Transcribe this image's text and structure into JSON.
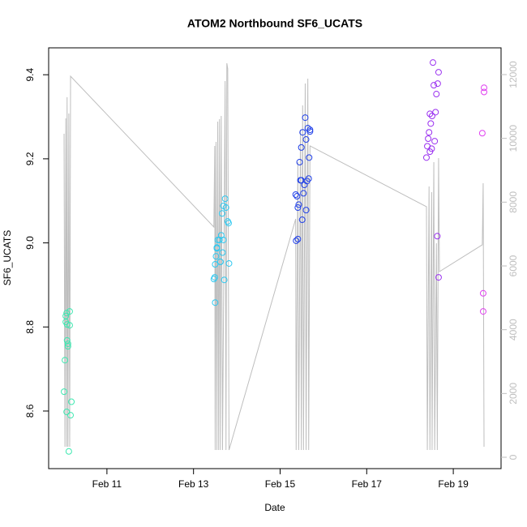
{
  "chart_data": {
    "type": "scatter",
    "title": "ATOM2 Northbound SF6_UCATS",
    "x_label": "Date",
    "y_label": "SF6_UCATS",
    "xlim": [
      9.654,
      20.103
    ],
    "xticks": [
      {
        "value": 11,
        "label": "Feb 11"
      },
      {
        "value": 13,
        "label": "Feb 13"
      },
      {
        "value": 15,
        "label": "Feb 15"
      },
      {
        "value": 17,
        "label": "Feb 17"
      },
      {
        "value": 19,
        "label": "Feb 19"
      }
    ],
    "ylim": [
      8.463,
      9.464
    ],
    "yticks": [
      8.6,
      8.8,
      {
        "value": 9,
        "label": "9.0"
      },
      9.2,
      9.4
    ],
    "y2lim": [
      -356,
      12839
    ],
    "y2ticks": [
      0,
      2000,
      4000,
      6000,
      8000,
      10000,
      12000
    ],
    "y2_color": "#bebebe",
    "series": [
      {
        "color": "#3ee8b0",
        "x": [
          10.01,
          10.03,
          10.05,
          10.05,
          10.07,
          10.07,
          10.08,
          10.08,
          10.1,
          10.1,
          10.12,
          10.14,
          10.14,
          10.16,
          10.18
        ],
        "values": [
          8.646,
          8.721,
          8.826,
          8.812,
          8.833,
          8.598,
          8.806,
          8.768,
          8.76,
          8.754,
          8.504,
          8.837,
          8.804,
          8.59,
          8.622
        ]
      },
      {
        "color": "#2ec8f0",
        "x": [
          13.47,
          13.49,
          13.5,
          13.5,
          13.52,
          13.54,
          13.54,
          13.56,
          13.6,
          13.62,
          13.62,
          13.64,
          13.66,
          13.67,
          13.69,
          13.69,
          13.71,
          13.73,
          13.75,
          13.79,
          13.81,
          13.82
        ],
        "values": [
          8.914,
          8.918,
          8.949,
          8.858,
          8.968,
          8.987,
          8.989,
          9.007,
          9.007,
          8.955,
          8.955,
          9.018,
          9.07,
          8.977,
          9.088,
          9.007,
          8.912,
          9.105,
          9.084,
          9.051,
          9.047,
          8.951
        ]
      },
      {
        "color": "#2040e8",
        "x": [
          15.36,
          15.37,
          15.39,
          15.41,
          15.41,
          15.43,
          15.45,
          15.47,
          15.49,
          15.49,
          15.51,
          15.52,
          15.54,
          15.56,
          15.58,
          15.6,
          15.6,
          15.62,
          15.64,
          15.66,
          15.67,
          15.69,
          15.69
        ],
        "values": [
          9.115,
          9.005,
          9.111,
          9.009,
          9.084,
          9.091,
          9.192,
          9.149,
          9.227,
          9.149,
          9.055,
          9.263,
          9.118,
          9.138,
          9.298,
          9.078,
          9.246,
          9.147,
          9.273,
          9.153,
          9.203,
          9.265,
          9.269
        ]
      },
      {
        "color": "#9a30f0",
        "x": [
          18.38,
          18.4,
          18.42,
          18.44,
          18.46,
          18.46,
          18.48,
          18.5,
          18.51,
          18.53,
          18.55,
          18.57,
          18.59,
          18.61,
          18.63,
          18.64,
          18.66,
          18.66
        ],
        "values": [
          9.203,
          9.23,
          9.248,
          9.263,
          9.217,
          9.307,
          9.284,
          9.224,
          9.302,
          9.429,
          9.375,
          9.242,
          9.311,
          9.354,
          9.016,
          9.379,
          8.918,
          9.406
        ]
      },
      {
        "color": "#e040f0",
        "x": [
          19.67,
          19.69,
          19.69,
          19.71,
          19.71
        ],
        "values": [
          9.261,
          8.88,
          8.837,
          9.369,
          9.359
        ]
      },
      {
        "type": "line",
        "axis": "y2",
        "color": "#bebebe",
        "x": [
          10.01,
          10.03,
          10.05,
          10.07,
          10.08,
          10.1,
          10.12,
          10.14,
          10.16,
          13.47,
          13.49,
          13.5,
          13.52,
          13.54,
          13.56,
          13.58,
          13.6,
          13.62,
          13.64,
          13.67,
          13.73,
          13.75,
          13.77,
          13.79,
          13.82,
          15.36,
          15.37,
          15.41,
          15.43,
          15.47,
          15.49,
          15.52,
          15.54,
          15.58,
          15.6,
          15.64,
          15.66,
          15.69,
          18.38,
          18.4,
          18.44,
          18.46,
          18.5,
          18.51,
          18.55,
          18.57,
          18.61,
          18.63,
          18.66,
          18.68,
          19.67,
          19.69,
          19.71
        ],
        "values": [
          10145,
          330,
          10628,
          330,
          11290,
          330,
          10780,
          330,
          11950,
          7221,
          9763,
          229,
          9891,
          229,
          10526,
          229,
          10603,
          229,
          10705,
          229,
          11798,
          229,
          12357,
          12180,
          229,
          7475,
          229,
          9255,
          229,
          10272,
          229,
          11035,
          229,
          11722,
          229,
          11874,
          229,
          9763,
          7857,
          229,
          8492,
          229,
          8314,
          229,
          9255,
          229,
          6713,
          229,
          9382,
          5822,
          6662,
          8594,
          330
        ]
      }
    ]
  }
}
